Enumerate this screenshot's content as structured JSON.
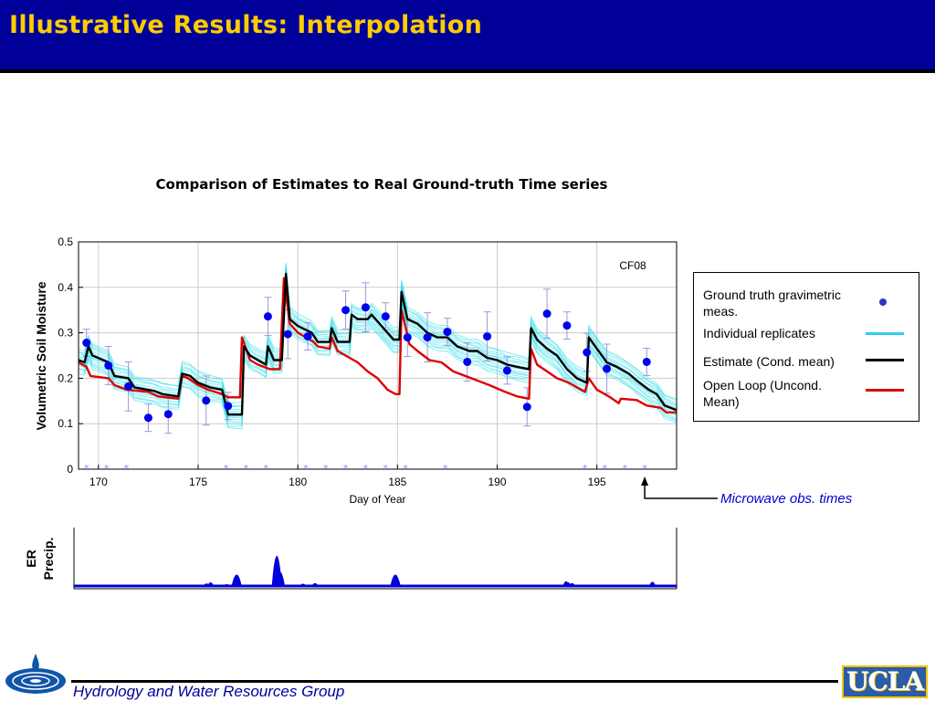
{
  "slide": {
    "title": "Illustrative Results: Interpolation",
    "footer": "Hydrology and Water Resources Group",
    "logo_text": "UCLA",
    "colors": {
      "header_bg": "#000099",
      "title_text": "#ffcc00",
      "footer_text": "#000099"
    }
  },
  "chart_data": [
    {
      "type": "line",
      "title": "Comparison of Estimates to Real Ground-truth Time series",
      "xlabel": "Day of Year",
      "ylabel": "Volumetric Soil Moisture",
      "annotation": "CF08",
      "xlim": [
        169,
        199
      ],
      "ylim": [
        0,
        0.5
      ],
      "xticks": [
        "170",
        "175",
        "180",
        "185",
        "190",
        "195"
      ],
      "yticks": [
        "0",
        "0.1",
        "0.2",
        "0.3",
        "0.4",
        "0.5"
      ],
      "grid": true,
      "legend": {
        "position": "right",
        "entries": [
          {
            "label": "Ground truth gravimetric meas.",
            "color": "#3333cc",
            "marker": "dot"
          },
          {
            "label": "Individual replicates",
            "color": "#33ccee",
            "marker": "line"
          },
          {
            "label": "Estimate (Cond. mean)",
            "color": "#000000",
            "marker": "line"
          },
          {
            "label": "Open Loop (Uncond. Mean)",
            "color": "#dd0000",
            "marker": "line"
          }
        ]
      },
      "series": [
        {
          "name": "Ground truth gravimetric meas.",
          "color": "#0000ee",
          "points": [
            [
              169.4,
              0.278
            ],
            [
              170.5,
              0.228
            ],
            [
              171.5,
              0.182
            ],
            [
              172.5,
              0.113
            ],
            [
              173.5,
              0.121
            ],
            [
              175.4,
              0.151
            ],
            [
              176.5,
              0.139
            ],
            [
              178.5,
              0.336
            ],
            [
              179.5,
              0.297
            ],
            [
              180.5,
              0.292
            ],
            [
              182.4,
              0.35
            ],
            [
              183.4,
              0.356
            ],
            [
              184.4,
              0.336
            ],
            [
              185.5,
              0.29
            ],
            [
              186.5,
              0.29
            ],
            [
              187.5,
              0.302
            ],
            [
              188.5,
              0.236
            ],
            [
              189.5,
              0.292
            ],
            [
              190.5,
              0.217
            ],
            [
              191.5,
              0.137
            ],
            [
              192.5,
              0.342
            ],
            [
              193.5,
              0.316
            ],
            [
              194.5,
              0.257
            ],
            [
              195.5,
              0.221
            ],
            [
              197.5,
              0.236
            ]
          ]
        },
        {
          "name": "Estimate (Cond. mean)",
          "color": "#000000",
          "points": [
            [
              169,
              0.24
            ],
            [
              169.3,
              0.235
            ],
            [
              169.5,
              0.27
            ],
            [
              169.7,
              0.25
            ],
            [
              170.5,
              0.235
            ],
            [
              170.8,
              0.205
            ],
            [
              171.5,
              0.2
            ],
            [
              171.8,
              0.18
            ],
            [
              172.8,
              0.172
            ],
            [
              173.2,
              0.165
            ],
            [
              174,
              0.16
            ],
            [
              174.2,
              0.21
            ],
            [
              174.6,
              0.205
            ],
            [
              175,
              0.19
            ],
            [
              175.6,
              0.18
            ],
            [
              176.2,
              0.175
            ],
            [
              176.5,
              0.12
            ],
            [
              177.2,
              0.12
            ],
            [
              177.3,
              0.27
            ],
            [
              177.6,
              0.25
            ],
            [
              178,
              0.24
            ],
            [
              178.4,
              0.23
            ],
            [
              178.5,
              0.27
            ],
            [
              178.8,
              0.24
            ],
            [
              179.2,
              0.24
            ],
            [
              179.4,
              0.43
            ],
            [
              179.6,
              0.33
            ],
            [
              180,
              0.315
            ],
            [
              180.7,
              0.3
            ],
            [
              181,
              0.28
            ],
            [
              181.6,
              0.28
            ],
            [
              181.7,
              0.31
            ],
            [
              182,
              0.28
            ],
            [
              182.6,
              0.28
            ],
            [
              182.7,
              0.34
            ],
            [
              183,
              0.33
            ],
            [
              183.5,
              0.33
            ],
            [
              183.7,
              0.34
            ],
            [
              184,
              0.325
            ],
            [
              184.5,
              0.3
            ],
            [
              184.8,
              0.285
            ],
            [
              185.1,
              0.285
            ],
            [
              185.2,
              0.39
            ],
            [
              185.5,
              0.33
            ],
            [
              186,
              0.32
            ],
            [
              186.5,
              0.3
            ],
            [
              187,
              0.29
            ],
            [
              187.5,
              0.29
            ],
            [
              188,
              0.27
            ],
            [
              188.6,
              0.26
            ],
            [
              189,
              0.26
            ],
            [
              189.5,
              0.245
            ],
            [
              190,
              0.24
            ],
            [
              190.5,
              0.23
            ],
            [
              191,
              0.225
            ],
            [
              191.6,
              0.22
            ],
            [
              191.7,
              0.31
            ],
            [
              192,
              0.285
            ],
            [
              192.5,
              0.265
            ],
            [
              193,
              0.25
            ],
            [
              193.5,
              0.22
            ],
            [
              194,
              0.2
            ],
            [
              194.5,
              0.19
            ],
            [
              194.6,
              0.29
            ],
            [
              195,
              0.265
            ],
            [
              195.5,
              0.235
            ],
            [
              196,
              0.225
            ],
            [
              196.6,
              0.21
            ],
            [
              197,
              0.195
            ],
            [
              197.6,
              0.175
            ],
            [
              198,
              0.165
            ],
            [
              198.4,
              0.14
            ],
            [
              199,
              0.13
            ]
          ]
        },
        {
          "name": "Open Loop (Uncond. Mean)",
          "color": "#dd0000",
          "points": [
            [
              169,
              0.235
            ],
            [
              169.4,
              0.225
            ],
            [
              169.6,
              0.205
            ],
            [
              170.5,
              0.2
            ],
            [
              170.8,
              0.185
            ],
            [
              171.4,
              0.175
            ],
            [
              172.5,
              0.17
            ],
            [
              173,
              0.16
            ],
            [
              174,
              0.155
            ],
            [
              174.2,
              0.205
            ],
            [
              174.5,
              0.2
            ],
            [
              175,
              0.185
            ],
            [
              175.5,
              0.175
            ],
            [
              176.2,
              0.165
            ],
            [
              176.5,
              0.158
            ],
            [
              177.1,
              0.158
            ],
            [
              177.2,
              0.29
            ],
            [
              177.6,
              0.24
            ],
            [
              178,
              0.23
            ],
            [
              178.6,
              0.22
            ],
            [
              179.1,
              0.22
            ],
            [
              179.3,
              0.42
            ],
            [
              179.6,
              0.32
            ],
            [
              180,
              0.3
            ],
            [
              180.8,
              0.28
            ],
            [
              181,
              0.27
            ],
            [
              181.6,
              0.265
            ],
            [
              181.7,
              0.29
            ],
            [
              182,
              0.26
            ],
            [
              182.6,
              0.245
            ],
            [
              183,
              0.235
            ],
            [
              183.5,
              0.215
            ],
            [
              184,
              0.2
            ],
            [
              184.5,
              0.175
            ],
            [
              184.9,
              0.165
            ],
            [
              185.1,
              0.165
            ],
            [
              185.2,
              0.35
            ],
            [
              185.6,
              0.275
            ],
            [
              186,
              0.26
            ],
            [
              186.6,
              0.24
            ],
            [
              187.2,
              0.235
            ],
            [
              187.8,
              0.215
            ],
            [
              188.4,
              0.205
            ],
            [
              189,
              0.195
            ],
            [
              189.6,
              0.185
            ],
            [
              190.4,
              0.17
            ],
            [
              191,
              0.16
            ],
            [
              191.6,
              0.155
            ],
            [
              191.7,
              0.265
            ],
            [
              192,
              0.23
            ],
            [
              192.5,
              0.215
            ],
            [
              193,
              0.2
            ],
            [
              193.6,
              0.19
            ],
            [
              194.4,
              0.17
            ],
            [
              194.6,
              0.2
            ],
            [
              195,
              0.175
            ],
            [
              195.6,
              0.16
            ],
            [
              196.1,
              0.145
            ],
            [
              196.2,
              0.155
            ],
            [
              197,
              0.152
            ],
            [
              197.5,
              0.14
            ],
            [
              198.2,
              0.135
            ],
            [
              198.5,
              0.125
            ],
            [
              199,
              0.125
            ]
          ]
        }
      ]
    },
    {
      "type": "line",
      "ylabel": "ER Precip.",
      "xlim": [
        169,
        199
      ],
      "series": [
        {
          "color": "#0000dd",
          "values_x": [
            174.5,
            175.6,
            175.8,
            176.6,
            177.1,
            179.1,
            179.25,
            180.4,
            181.0,
            185.0,
            185.1,
            193.5,
            193.6,
            193.8,
            197.8
          ],
          "values_y": [
            0.0,
            0.04,
            0.08,
            0.02,
            0.35,
            1.0,
            0.45,
            0.03,
            0.05,
            0.35,
            0.2,
            0.12,
            0.08,
            0.05,
            0.1
          ]
        }
      ]
    }
  ],
  "annotations": {
    "microwave_label": "Microwave obs. times",
    "microwave_days": [
      169.4,
      170.4,
      171.4,
      176.4,
      177.4,
      178.4,
      180.4,
      181.4,
      182.4,
      183.4,
      184.4,
      185.4,
      187.4,
      194.4,
      195.4,
      196.4,
      197.4
    ]
  }
}
